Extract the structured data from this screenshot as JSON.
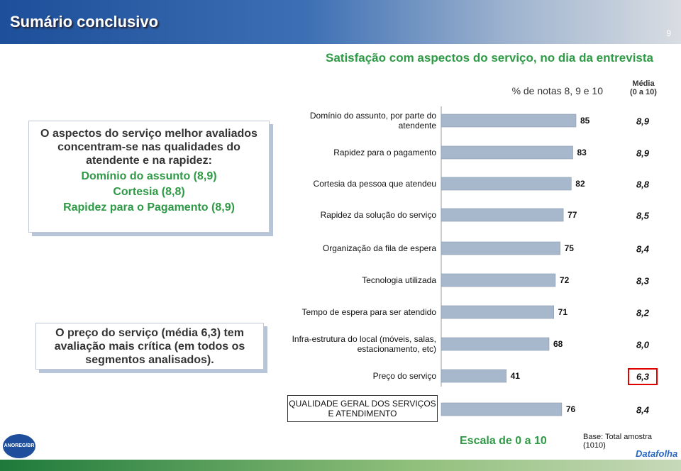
{
  "header": {
    "title": "Sumário conclusivo",
    "page": "9"
  },
  "summary_boxes": [
    {
      "lines": [
        "O aspectos do serviço melhor avaliados concentram-se nas qualidades do atendente e na rapidez:",
        "Domínio do assunto (8,9)",
        "Cortesia (8,8)",
        "Rapidez para o Pagamento (8,9)"
      ]
    },
    {
      "lines": [
        "O preço do serviço (média 6,3) tem avaliação mais crítica (em todos os segmentos analisados)."
      ]
    }
  ],
  "chart_data": {
    "type": "bar",
    "orientation": "horizontal",
    "title": "Satisfação com aspectos do serviço, no dia da entrevista",
    "categories": [
      "Domínio do assunto, por parte do atendente",
      "Rapidez para o pagamento",
      "Cortesia da pessoa que atendeu",
      "Rapidez da solução do serviço",
      "Organização da fila de espera",
      "Tecnologia utilizada",
      "Tempo de espera para ser atendido",
      "Infra-estrutura do local (móveis, salas, estacionamento, etc)",
      "Preço do serviço",
      "QUALIDADE GERAL DOS SERVIÇOS E ATENDIMENTO"
    ],
    "series": [
      {
        "name": "% de notas 8, 9 e 10",
        "color": "#a8b8cc",
        "values": [
          85,
          83,
          82,
          77,
          75,
          72,
          71,
          68,
          41,
          76
        ]
      },
      {
        "name": "Média\n(0 a 10)",
        "values": [
          8.9,
          8.9,
          8.8,
          8.5,
          8.4,
          8.3,
          8.2,
          8.0,
          6.3,
          8.4
        ],
        "value_labels": [
          "8,9",
          "8,9",
          "8,8",
          "8,5",
          "8,4",
          "8,3",
          "8,2",
          "8,0",
          "6,3",
          "8,4"
        ]
      }
    ],
    "highlight_index": 8,
    "highlight_color": "#e00000"
  },
  "footer": {
    "scale": "Escala de 0 a 10",
    "base": "Base: Total amostra\n(1010)",
    "logos": [
      "ANOREG/BR",
      "Datafolha"
    ]
  }
}
